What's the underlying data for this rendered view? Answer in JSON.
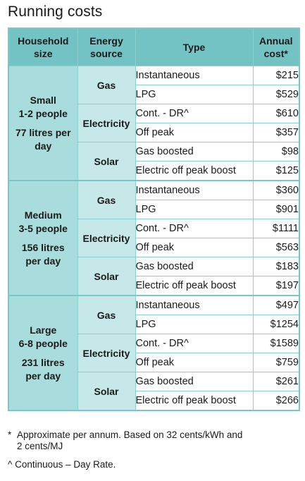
{
  "title": "Running costs",
  "headers": {
    "household": [
      "Household",
      "size"
    ],
    "source": [
      "Energy",
      "source"
    ],
    "type": "Type",
    "cost": [
      "Annual",
      "cost*"
    ]
  },
  "groups": [
    {
      "size": "Small",
      "people": "1-2 people",
      "litres": [
        "77 litres per",
        "day"
      ],
      "sources": [
        {
          "name": "Gas",
          "rows": [
            {
              "type": "Instantaneous",
              "cost": "$215"
            },
            {
              "type": "LPG",
              "cost": "$529"
            }
          ]
        },
        {
          "name": "Electricity",
          "rows": [
            {
              "type": "Cont. - DR^",
              "cost": "$610"
            },
            {
              "type": "Off peak",
              "cost": "$357"
            }
          ]
        },
        {
          "name": "Solar",
          "rows": [
            {
              "type": "Gas boosted",
              "cost": "$98"
            },
            {
              "type": "Electric off peak boost",
              "cost": "$125"
            }
          ]
        }
      ]
    },
    {
      "size": "Medium",
      "people": "3-5 people",
      "litres": [
        "156 litres",
        "per day"
      ],
      "sources": [
        {
          "name": "Gas",
          "rows": [
            {
              "type": "Instantaneous",
              "cost": "$360"
            },
            {
              "type": "LPG",
              "cost": "$901"
            }
          ]
        },
        {
          "name": "Electricity",
          "rows": [
            {
              "type": "Cont. - DR^",
              "cost": "$1111"
            },
            {
              "type": "Off peak",
              "cost": "$563"
            }
          ]
        },
        {
          "name": "Solar",
          "rows": [
            {
              "type": "Gas boosted",
              "cost": "$183"
            },
            {
              "type": "Electric off peak boost",
              "cost": "$197"
            }
          ]
        }
      ]
    },
    {
      "size": "Large",
      "people": "6-8 people",
      "litres": [
        "231 litres",
        "per day"
      ],
      "sources": [
        {
          "name": "Gas",
          "rows": [
            {
              "type": "Instantaneous",
              "cost": "$497"
            },
            {
              "type": "LPG",
              "cost": "$1254"
            }
          ]
        },
        {
          "name": "Electricity",
          "rows": [
            {
              "type": "Cont. - DR^",
              "cost": "$1589"
            },
            {
              "type": "Off peak",
              "cost": "$759"
            }
          ]
        },
        {
          "name": "Solar",
          "rows": [
            {
              "type": "Gas boosted",
              "cost": "$261"
            },
            {
              "type": "Electric off peak boost",
              "cost": "$266"
            }
          ]
        }
      ]
    }
  ],
  "footnotes": {
    "star_mark": "*",
    "star_line1": "Approximate per annum. Based on 32 cents/kWh and",
    "star_line2": "2 cents/MJ",
    "caret": "^ Continuous – Day Rate."
  }
}
